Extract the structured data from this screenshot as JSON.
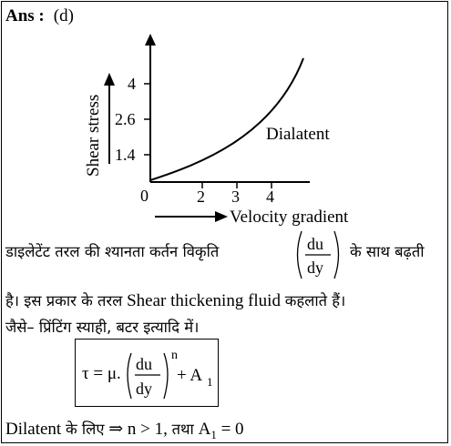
{
  "answer": {
    "label": "Ans :",
    "option": "(d)"
  },
  "chart_data": {
    "type": "line",
    "title": "",
    "xlabel": "Velocity gradient",
    "ylabel": "Shear stress",
    "origin_label": "0",
    "x_ticks": [
      "2",
      "3",
      "4"
    ],
    "y_ticks": [
      "1.4",
      "2.6",
      "4"
    ],
    "series": [
      {
        "name": "Dialatent"
      }
    ]
  },
  "hindi_line1_part1": "डाइलेटेंट तरल की श्यानता कर्तन विकृति",
  "fraction_num": "du",
  "fraction_den": "dy",
  "hindi_line1_part2": "के साथ बढ़ती",
  "line2_part1": "है। इस प्रकार के तरल",
  "line2_english": "Shear thickening fluid",
  "line2_part2": "कहलाते हैं।",
  "line3": "जैसे– प्रिंटिंग स्याही, बटर इत्यादि में।",
  "formula": {
    "tau": "τ = μ.",
    "num": "du",
    "den": "dy",
    "exponent": "n",
    "plus": "+ A",
    "sub": "1"
  },
  "last_line": {
    "word": "Dilatent",
    "hindi": "के लिए",
    "arrow": "⇒",
    "cond": "n > 1,",
    "tatha": "तथा",
    "a_eq": "A",
    "a_sub": "1",
    "a_val": "= 0"
  }
}
